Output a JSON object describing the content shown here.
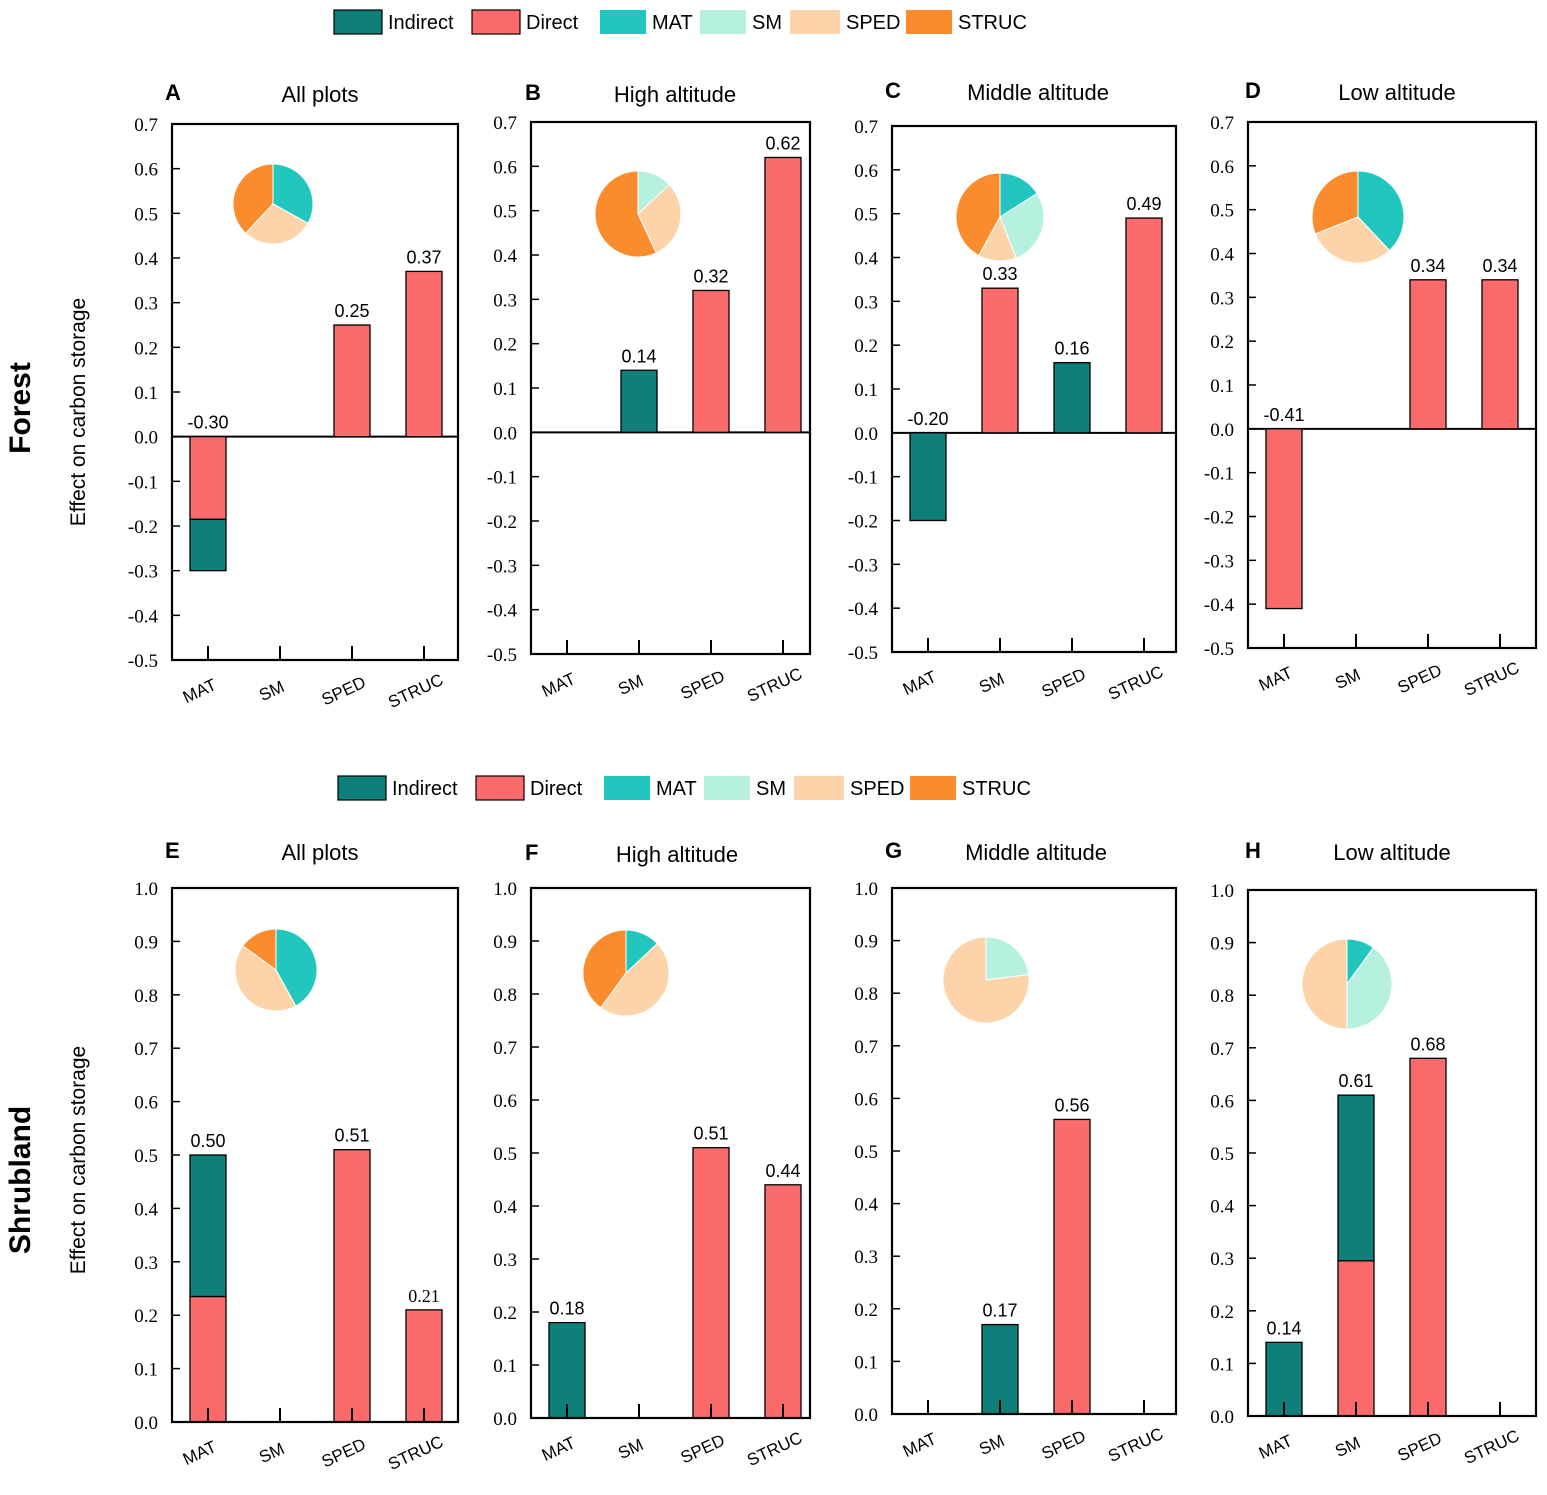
{
  "figure": {
    "row_labels": [
      "Forest",
      "Shrubland"
    ],
    "ylabel": "Effect on carbon storage",
    "legend": [
      {
        "label": "Indirect",
        "color": "#0f7f7a"
      },
      {
        "label": "Direct",
        "color": "#fb6b6b"
      },
      {
        "label": "MAT",
        "color": "#21c7bf"
      },
      {
        "label": "SM",
        "color": "#b6f0df"
      },
      {
        "label": "SPED",
        "color": "#fdd4a9"
      },
      {
        "label": "STRUC",
        "color": "#fb8c2e"
      }
    ]
  },
  "chart_data": [
    {
      "id": "A",
      "title": "All plots",
      "type": "bar",
      "stacked": true,
      "categories": [
        "MAT",
        "SM",
        "SPED",
        "STRUC"
      ],
      "ylim": [
        -0.5,
        0.7
      ],
      "ytick_step": 0.1,
      "series": [
        {
          "name": "Direct",
          "values": [
            -0.185,
            0,
            0.25,
            0.37
          ]
        },
        {
          "name": "Indirect",
          "values": [
            -0.115,
            0,
            0,
            0
          ]
        }
      ],
      "totals": [
        -0.3,
        0,
        0.25,
        0.37
      ],
      "labels": [
        "-0.30",
        "",
        "0.25",
        "0.37"
      ],
      "pie": {
        "MAT": 0.33,
        "SM": 0,
        "SPED": 0.29,
        "STRUC": 0.38
      }
    },
    {
      "id": "B",
      "title": "High altitude",
      "type": "bar",
      "stacked": true,
      "categories": [
        "MAT",
        "SM",
        "SPED",
        "STRUC"
      ],
      "ylim": [
        -0.5,
        0.7
      ],
      "ytick_step": 0.1,
      "series": [
        {
          "name": "Direct",
          "values": [
            0,
            0,
            0.32,
            0.62
          ]
        },
        {
          "name": "Indirect",
          "values": [
            0,
            0.14,
            0,
            0
          ]
        }
      ],
      "totals": [
        0,
        0.14,
        0.32,
        0.62
      ],
      "labels": [
        "",
        "0.14",
        "0.32",
        "0.62"
      ],
      "pie": {
        "MAT": 0,
        "SM": 0.13,
        "SPED": 0.3,
        "STRUC": 0.57
      }
    },
    {
      "id": "C",
      "title": "Middle altitude",
      "type": "bar",
      "stacked": true,
      "categories": [
        "MAT",
        "SM",
        "SPED",
        "STRUC"
      ],
      "ylim": [
        -0.5,
        0.7
      ],
      "ytick_step": 0.1,
      "series": [
        {
          "name": "Direct",
          "values": [
            0,
            0.33,
            0,
            0.49
          ]
        },
        {
          "name": "Indirect",
          "values": [
            -0.2,
            0,
            0.16,
            0
          ]
        }
      ],
      "totals": [
        -0.2,
        0.33,
        0.16,
        0.49
      ],
      "labels": [
        "-0.20",
        "0.33",
        "0.16",
        "0.49"
      ],
      "pie": {
        "MAT": 0.16,
        "SM": 0.28,
        "SPED": 0.14,
        "STRUC": 0.42
      }
    },
    {
      "id": "D",
      "title": "Low altitude",
      "type": "bar",
      "stacked": true,
      "categories": [
        "MAT",
        "SM",
        "SPED",
        "STRUC"
      ],
      "ylim": [
        -0.5,
        0.7
      ],
      "ytick_step": 0.1,
      "series": [
        {
          "name": "Direct",
          "values": [
            -0.41,
            0,
            0.34,
            0.34
          ]
        },
        {
          "name": "Indirect",
          "values": [
            0,
            0,
            0,
            0
          ]
        }
      ],
      "totals": [
        -0.41,
        0,
        0.34,
        0.34
      ],
      "labels": [
        "-0.41",
        "",
        "0.34",
        "0.34"
      ],
      "pie": {
        "MAT": 0.38,
        "SM": 0,
        "SPED": 0.31,
        "STRUC": 0.31
      }
    },
    {
      "id": "E",
      "title": "All plots",
      "type": "bar",
      "stacked": true,
      "categories": [
        "MAT",
        "SM",
        "SPED",
        "STRUC"
      ],
      "ylim": [
        0,
        1.0
      ],
      "ytick_step": 0.1,
      "series": [
        {
          "name": "Direct",
          "values": [
            0.235,
            0,
            0.51,
            0.21
          ]
        },
        {
          "name": "Indirect",
          "values": [
            0.265,
            0,
            0,
            0
          ]
        }
      ],
      "totals": [
        0.5,
        0,
        0.51,
        0.21
      ],
      "labels": [
        "0.50",
        "",
        "0.51",
        "0.21"
      ],
      "pie": {
        "MAT": 0.42,
        "SM": 0,
        "SPED": 0.43,
        "STRUC": 0.15
      }
    },
    {
      "id": "F",
      "title": "High altitude",
      "type": "bar",
      "stacked": true,
      "categories": [
        "MAT",
        "SM",
        "SPED",
        "STRUC"
      ],
      "ylim": [
        0,
        1.0
      ],
      "ytick_step": 0.1,
      "series": [
        {
          "name": "Direct",
          "values": [
            0,
            0,
            0.51,
            0.44
          ]
        },
        {
          "name": "Indirect",
          "values": [
            0.18,
            0,
            0,
            0
          ]
        }
      ],
      "totals": [
        0.18,
        0,
        0.51,
        0.44
      ],
      "labels": [
        "0.18",
        "",
        "0.51",
        "0.44"
      ],
      "pie": {
        "MAT": 0.13,
        "SM": 0,
        "SPED": 0.47,
        "STRUC": 0.4
      }
    },
    {
      "id": "G",
      "title": "Middle altitude",
      "type": "bar",
      "stacked": true,
      "categories": [
        "MAT",
        "SM",
        "SPED",
        "STRUC"
      ],
      "ylim": [
        0,
        1.0
      ],
      "ytick_step": 0.1,
      "series": [
        {
          "name": "Direct",
          "values": [
            0,
            0,
            0.56,
            0
          ]
        },
        {
          "name": "Indirect",
          "values": [
            0,
            0.17,
            0,
            0
          ]
        }
      ],
      "totals": [
        0,
        0.17,
        0.56,
        0
      ],
      "labels": [
        "",
        "0.17",
        "0.56",
        ""
      ],
      "pie": {
        "MAT": 0,
        "SM": 0.23,
        "SPED": 0.77,
        "STRUC": 0
      }
    },
    {
      "id": "H",
      "title": "Low altitude",
      "type": "bar",
      "stacked": true,
      "categories": [
        "MAT",
        "SM",
        "SPED",
        "STRUC"
      ],
      "ylim": [
        0,
        1.0
      ],
      "ytick_step": 0.1,
      "series": [
        {
          "name": "Direct",
          "values": [
            0,
            0.295,
            0.68,
            0
          ]
        },
        {
          "name": "Indirect",
          "values": [
            0.14,
            0.315,
            0,
            0
          ]
        }
      ],
      "totals": [
        0.14,
        0.61,
        0.68,
        0
      ],
      "labels": [
        "0.14",
        "0.61",
        "0.68",
        ""
      ],
      "pie": {
        "MAT": 0.1,
        "SM": 0.4,
        "SPED": 0.5,
        "STRUC": 0
      }
    }
  ]
}
